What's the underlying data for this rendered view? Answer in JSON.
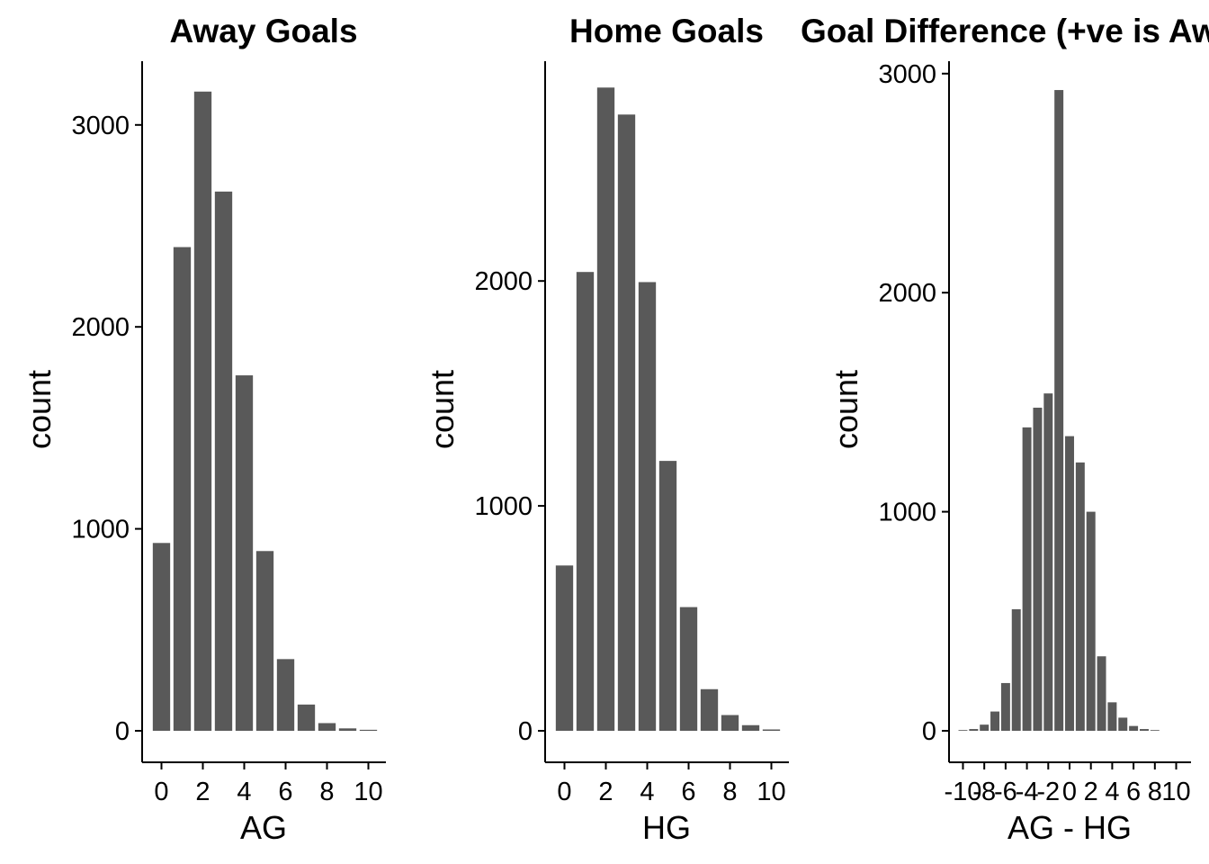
{
  "chart_data": [
    {
      "type": "bar",
      "title": "Away Goals",
      "xlabel": "AG",
      "ylabel": "count",
      "x": [
        0,
        1,
        2,
        3,
        4,
        5,
        6,
        7,
        8,
        9,
        10
      ],
      "values": [
        930,
        2395,
        3165,
        2670,
        1760,
        890,
        355,
        130,
        38,
        12,
        5
      ],
      "xticks": [
        "0",
        "2",
        "4",
        "6",
        "8",
        "10"
      ],
      "yticks": [
        "0",
        "1000",
        "2000",
        "3000"
      ],
      "xlim": [
        -0.5,
        10.5
      ],
      "ylim": [
        -150,
        3300
      ],
      "bar_color": "#595959",
      "grid": false
    },
    {
      "type": "bar",
      "title": "Home Goals",
      "xlabel": "HG",
      "ylabel": "count",
      "x": [
        0,
        1,
        2,
        3,
        4,
        5,
        6,
        7,
        8,
        9,
        10
      ],
      "values": [
        735,
        2040,
        2860,
        2740,
        1995,
        1200,
        550,
        185,
        70,
        25,
        6
      ],
      "xticks": [
        "0",
        "2",
        "4",
        "6",
        "8",
        "10"
      ],
      "yticks": [
        "0",
        "1000",
        "2000"
      ],
      "xlim": [
        -0.5,
        10.5
      ],
      "ylim": [
        -150,
        3000
      ],
      "bar_color": "#595959",
      "grid": false
    },
    {
      "type": "bar",
      "title": "Goal Difference (+ve is Away Win)",
      "xlabel": "AG - HG",
      "ylabel": "count",
      "x": [
        -10,
        -9,
        -8,
        -7,
        -6,
        -5,
        -4,
        -3,
        -2,
        -1,
        0,
        1,
        2,
        3,
        4,
        5,
        6,
        7,
        8
      ],
      "values": [
        3,
        8,
        28,
        88,
        218,
        555,
        1385,
        1475,
        1540,
        2925,
        1345,
        1225,
        1000,
        340,
        130,
        60,
        22,
        8,
        2
      ],
      "xticks": [
        "-10",
        "-8",
        "-6",
        "-4",
        "-2",
        "0",
        "2",
        "4",
        "6",
        "8",
        "10"
      ],
      "yticks": [
        "0",
        "1000",
        "2000",
        "3000"
      ],
      "xlim": [
        -10.8,
        10.8
      ],
      "ylim": [
        -150,
        3050
      ],
      "bar_color": "#595959",
      "grid": false
    }
  ]
}
